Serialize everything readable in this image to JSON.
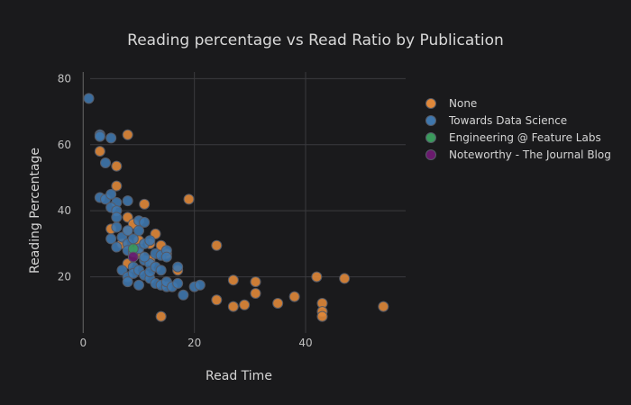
{
  "chart_data": {
    "type": "scatter",
    "title": "Reading percentage vs Read Ratio by Publication",
    "xlabel": "Read Time",
    "ylabel": "Reading Percentage",
    "xlim": [
      -2,
      58
    ],
    "ylim": [
      3,
      82
    ],
    "xticks": [
      0,
      20,
      40
    ],
    "yticks": [
      20,
      40,
      60,
      80
    ],
    "grid": true,
    "legend_position": "top-right",
    "series": [
      {
        "name": "None",
        "color": "#e0883a",
        "points": [
          [
            3,
            58
          ],
          [
            6,
            53.5
          ],
          [
            6,
            47.5
          ],
          [
            8,
            63
          ],
          [
            8,
            38
          ],
          [
            9,
            36
          ],
          [
            8,
            34
          ],
          [
            5,
            34.5
          ],
          [
            7,
            30
          ],
          [
            8,
            24
          ],
          [
            10,
            31
          ],
          [
            11,
            42
          ],
          [
            12,
            30
          ],
          [
            13,
            33
          ],
          [
            14,
            29.5
          ],
          [
            12,
            25
          ],
          [
            10,
            27
          ],
          [
            15,
            27
          ],
          [
            17,
            22
          ],
          [
            19,
            43.5
          ],
          [
            14,
            8
          ],
          [
            24,
            29.5
          ],
          [
            24,
            13
          ],
          [
            27,
            19
          ],
          [
            27,
            11
          ],
          [
            29,
            11.5
          ],
          [
            31,
            18.5
          ],
          [
            31,
            15
          ],
          [
            35,
            12
          ],
          [
            38,
            14
          ],
          [
            42,
            20
          ],
          [
            43,
            12
          ],
          [
            43,
            9.5
          ],
          [
            43,
            8
          ],
          [
            47,
            19.5
          ],
          [
            54,
            11
          ]
        ]
      },
      {
        "name": "Towards Data Science",
        "color": "#3f77ad",
        "points": [
          [
            1,
            74
          ],
          [
            3,
            63
          ],
          [
            3,
            62.5
          ],
          [
            5,
            62
          ],
          [
            4,
            54.5
          ],
          [
            3,
            44
          ],
          [
            4,
            43.5
          ],
          [
            5,
            45
          ],
          [
            6,
            42.5
          ],
          [
            5,
            41
          ],
          [
            6,
            40
          ],
          [
            6,
            38
          ],
          [
            8,
            43
          ],
          [
            6,
            35
          ],
          [
            5,
            31.5
          ],
          [
            7,
            32
          ],
          [
            8,
            34
          ],
          [
            8,
            30
          ],
          [
            9,
            31.5
          ],
          [
            10,
            37
          ],
          [
            11,
            36.5
          ],
          [
            10,
            34
          ],
          [
            6,
            29
          ],
          [
            8,
            28
          ],
          [
            9,
            27.5
          ],
          [
            10,
            28.5
          ],
          [
            11,
            30
          ],
          [
            12,
            31
          ],
          [
            13,
            27
          ],
          [
            14,
            26.5
          ],
          [
            15,
            28
          ],
          [
            15,
            26
          ],
          [
            11,
            25
          ],
          [
            12,
            24
          ],
          [
            9,
            23
          ],
          [
            7,
            22
          ],
          [
            8,
            20
          ],
          [
            8,
            18.5
          ],
          [
            9,
            21
          ],
          [
            10,
            22
          ],
          [
            11,
            20.5
          ],
          [
            12,
            19.5
          ],
          [
            12,
            21.5
          ],
          [
            13,
            23
          ],
          [
            14,
            22
          ],
          [
            13,
            18
          ],
          [
            14,
            17.5
          ],
          [
            15,
            17
          ],
          [
            15,
            18.5
          ],
          [
            16,
            17
          ],
          [
            17,
            23
          ],
          [
            17,
            18
          ],
          [
            18,
            14.5
          ],
          [
            20,
            17
          ],
          [
            21,
            17.5
          ],
          [
            10,
            17.5
          ],
          [
            11,
            26
          ]
        ]
      },
      {
        "name": "Engineering @ Feature Labs",
        "color": "#3a9a5c",
        "points": [
          [
            9,
            28.5
          ]
        ]
      },
      {
        "name": "Noteworthy - The Journal Blog",
        "color": "#6a1a6e",
        "points": [
          [
            9,
            26
          ]
        ]
      }
    ]
  }
}
